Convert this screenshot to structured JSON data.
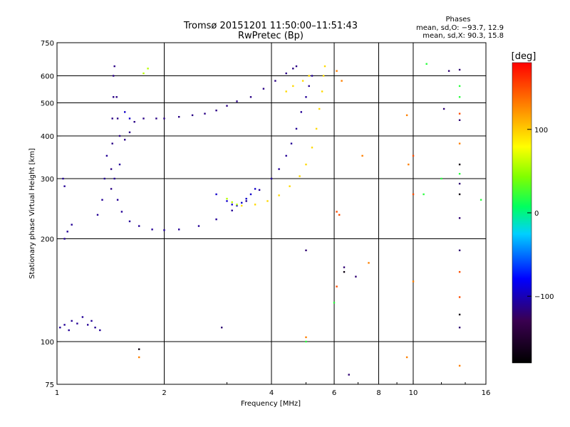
{
  "chart_data": {
    "type": "scatter",
    "title": "Tromsø 20151201 11:50:00–11:51:43",
    "subtitle": "RwPretec (Bp)",
    "xlabel": "Frequency [MHz]",
    "ylabel": "Stationary phase Virtual Height [km]",
    "x_scale": "log",
    "y_scale": "log",
    "xlim": [
      1,
      16
    ],
    "ylim": [
      75,
      750
    ],
    "x_ticks": [
      1,
      2,
      4,
      6,
      8,
      10,
      16
    ],
    "x_tick_labels": [
      "1",
      "2",
      "4",
      "6",
      "8",
      "10",
      "16"
    ],
    "y_ticks": [
      75,
      100,
      200,
      300,
      400,
      500,
      600,
      750
    ],
    "y_tick_labels": [
      "75",
      "100",
      "200",
      "300",
      "400",
      "500",
      "600",
      "750"
    ],
    "grid": true,
    "stats": {
      "heading": "Phases",
      "line_o": "mean, sd,O: −93.7, 12.9",
      "line_x": "mean, sd,X:  90.3, 15.8"
    },
    "colorbar": {
      "label": "[deg]",
      "range": [
        -180,
        180
      ],
      "ticks": [
        100,
        0,
        -100
      ],
      "tick_labels": [
        "100",
        "0",
        "−100"
      ],
      "position": "right"
    },
    "series": [
      {
        "phase": -110,
        "points": [
          [
            1.02,
            110
          ],
          [
            1.05,
            112
          ],
          [
            1.08,
            108
          ],
          [
            1.1,
            115
          ],
          [
            1.14,
            113
          ],
          [
            1.18,
            118
          ],
          [
            1.22,
            112
          ],
          [
            1.25,
            115
          ],
          [
            1.28,
            110
          ],
          [
            1.32,
            108
          ],
          [
            1.05,
            200
          ],
          [
            1.07,
            210
          ],
          [
            1.1,
            220
          ],
          [
            1.05,
            285
          ],
          [
            1.04,
            300
          ],
          [
            1.3,
            235
          ],
          [
            1.34,
            260
          ],
          [
            1.36,
            300
          ],
          [
            1.38,
            350
          ]
        ]
      },
      {
        "phase": -115,
        "points": [
          [
            1.42,
            280
          ],
          [
            1.42,
            320
          ],
          [
            1.43,
            380
          ],
          [
            1.43,
            450
          ],
          [
            1.44,
            520
          ],
          [
            1.44,
            600
          ],
          [
            1.45,
            640
          ],
          [
            1.47,
            520
          ],
          [
            1.48,
            450
          ],
          [
            1.5,
            400
          ],
          [
            1.55,
            390
          ],
          [
            1.6,
            410
          ],
          [
            1.65,
            440
          ],
          [
            1.75,
            450
          ],
          [
            1.9,
            450
          ],
          [
            2.0,
            450
          ],
          [
            2.2,
            455
          ],
          [
            2.4,
            460
          ],
          [
            2.6,
            465
          ],
          [
            2.8,
            475
          ],
          [
            3.0,
            490
          ],
          [
            3.2,
            505
          ],
          [
            3.5,
            520
          ],
          [
            3.8,
            550
          ],
          [
            4.1,
            580
          ],
          [
            4.4,
            610
          ],
          [
            4.6,
            630
          ],
          [
            4.7,
            640
          ]
        ]
      },
      {
        "phase": -110,
        "points": [
          [
            1.5,
            330
          ],
          [
            1.45,
            300
          ],
          [
            1.48,
            260
          ],
          [
            1.52,
            240
          ],
          [
            1.6,
            225
          ],
          [
            1.7,
            218
          ],
          [
            1.85,
            213
          ],
          [
            2.0,
            212
          ],
          [
            2.2,
            213
          ],
          [
            2.5,
            218
          ],
          [
            2.8,
            228
          ],
          [
            3.1,
            242
          ],
          [
            3.4,
            258
          ],
          [
            3.7,
            278
          ],
          [
            4.0,
            300
          ],
          [
            4.2,
            320
          ],
          [
            4.4,
            350
          ],
          [
            4.55,
            380
          ],
          [
            4.7,
            420
          ],
          [
            4.85,
            470
          ],
          [
            5.0,
            520
          ],
          [
            5.1,
            560
          ],
          [
            5.2,
            600
          ]
        ]
      },
      {
        "phase": -95,
        "points": [
          [
            2.8,
            270
          ],
          [
            3.0,
            258
          ],
          [
            3.1,
            252
          ],
          [
            3.2,
            250
          ],
          [
            3.3,
            255
          ],
          [
            3.4,
            262
          ],
          [
            3.5,
            270
          ],
          [
            3.6,
            280
          ],
          [
            1.55,
            470
          ],
          [
            1.6,
            450
          ]
        ]
      },
      {
        "phase": 95,
        "points": [
          [
            3.3,
            250
          ],
          [
            3.6,
            252
          ],
          [
            3.9,
            258
          ],
          [
            4.2,
            268
          ],
          [
            4.5,
            285
          ],
          [
            4.8,
            305
          ],
          [
            5.0,
            330
          ],
          [
            5.2,
            370
          ],
          [
            5.35,
            420
          ],
          [
            5.45,
            480
          ],
          [
            5.55,
            540
          ],
          [
            5.6,
            600
          ],
          [
            5.65,
            640
          ],
          [
            4.6,
            560
          ],
          [
            4.9,
            580
          ],
          [
            5.1,
            600
          ],
          [
            4.4,
            540
          ]
        ]
      },
      {
        "phase": 60,
        "points": [
          [
            3.0,
            262
          ],
          [
            3.1,
            256
          ],
          [
            3.2,
            252
          ],
          [
            1.75,
            610
          ],
          [
            1.8,
            630
          ]
        ]
      },
      {
        "phase": 130,
        "points": [
          [
            6.1,
            620
          ],
          [
            6.3,
            580
          ],
          [
            7.2,
            350
          ],
          [
            7.5,
            170
          ],
          [
            5.0,
            103
          ],
          [
            1.7,
            90
          ],
          [
            9.6,
            90
          ],
          [
            13.5,
            85
          ],
          [
            10.0,
            150
          ],
          [
            13.5,
            380
          ],
          [
            9.6,
            460
          ],
          [
            9.7,
            330
          ]
        ]
      },
      {
        "phase": -120,
        "points": [
          [
            5.0,
            185
          ],
          [
            6.4,
            165
          ],
          [
            6.9,
            155
          ],
          [
            13.5,
            625
          ],
          [
            13.5,
            445
          ],
          [
            13.5,
            230
          ],
          [
            12.2,
            480
          ],
          [
            13.5,
            290
          ],
          [
            13.5,
            185
          ],
          [
            13.5,
            110
          ],
          [
            12.6,
            620
          ],
          [
            2.9,
            110
          ],
          [
            6.6,
            80
          ]
        ]
      },
      {
        "phase": 20,
        "points": [
          [
            10.9,
            650
          ],
          [
            13.5,
            560
          ],
          [
            13.5,
            520
          ],
          [
            12.0,
            300
          ],
          [
            13.5,
            310
          ],
          [
            6.0,
            130
          ],
          [
            5.0,
            100
          ],
          [
            10.7,
            270
          ],
          [
            15.5,
            260
          ]
        ]
      },
      {
        "phase": 150,
        "points": [
          [
            6.1,
            145
          ],
          [
            6.2,
            235
          ],
          [
            10.0,
            270
          ],
          [
            6.1,
            240
          ],
          [
            13.5,
            135
          ],
          [
            13.5,
            160
          ],
          [
            13.5,
            465
          ],
          [
            10.0,
            350
          ]
        ]
      },
      {
        "phase": -170,
        "points": [
          [
            1.7,
            95
          ],
          [
            6.4,
            160
          ],
          [
            13.5,
            120
          ],
          [
            13.5,
            330
          ],
          [
            13.5,
            270
          ]
        ]
      }
    ]
  }
}
